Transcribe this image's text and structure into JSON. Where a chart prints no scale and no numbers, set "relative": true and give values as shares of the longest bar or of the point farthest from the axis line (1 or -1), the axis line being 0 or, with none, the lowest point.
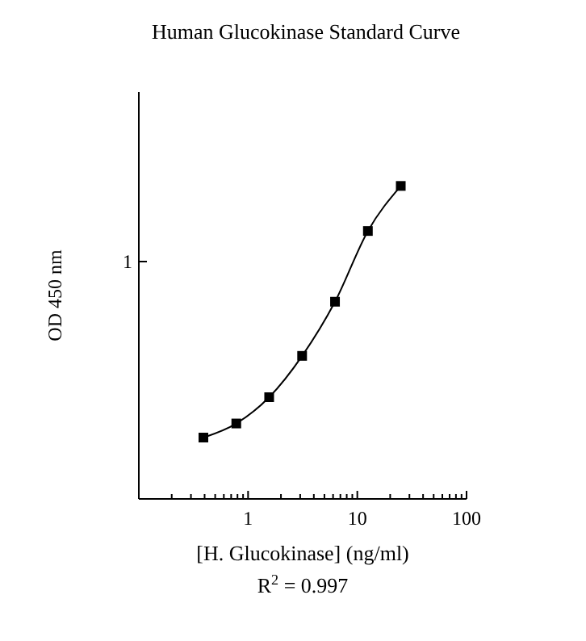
{
  "chart_data": {
    "type": "line",
    "title": "Human Glucokinase Standard Curve",
    "xlabel": "[H. Glucokinase] (ng/ml)",
    "ylabel": "OD 450 nm",
    "relative": true,
    "annotations": [
      "1",
      "R$^{2}$ = 0.997"
    ],
    "x": [
      0.39,
      0.78,
      1.56,
      3.125,
      6.25,
      12.5,
      25
    ],
    "series": [
      {
        "color": "#000000",
        "values": [
          0.196,
          0.241,
          0.325,
          0.457,
          0.63,
          0.856,
          1
        ]
      }
    ],
    "log": "x",
    "marker": "square",
    "line_style": "solid",
    "xlim": [
      0.1,
      100
    ],
    "xticks": [
      {
        "value": 0.2,
        "label": null
      },
      {
        "value": 0.3,
        "label": null
      },
      {
        "value": 0.4,
        "label": null
      },
      {
        "value": 0.5,
        "label": null
      },
      {
        "value": 0.6,
        "label": null
      },
      {
        "value": 0.7,
        "label": null
      },
      {
        "value": 0.8,
        "label": null
      },
      {
        "value": 0.9,
        "label": null
      },
      1,
      {
        "value": 2,
        "label": null
      },
      {
        "value": 3,
        "label": null
      },
      {
        "value": 4,
        "label": null
      },
      {
        "value": 5,
        "label": null
      },
      {
        "value": 6,
        "label": null
      },
      {
        "value": 7,
        "label": null
      },
      {
        "value": 8,
        "label": null
      },
      {
        "value": 9,
        "label": null
      },
      10,
      {
        "value": 20,
        "label": null
      },
      {
        "value": 30,
        "label": null
      },
      {
        "value": 40,
        "label": null
      },
      {
        "value": 50,
        "label": null
      },
      {
        "value": 60,
        "label": null
      },
      {
        "value": 70,
        "label": null
      },
      {
        "value": 80,
        "label": null
      },
      {
        "value": 90,
        "label": null
      },
      100
    ]
  }
}
